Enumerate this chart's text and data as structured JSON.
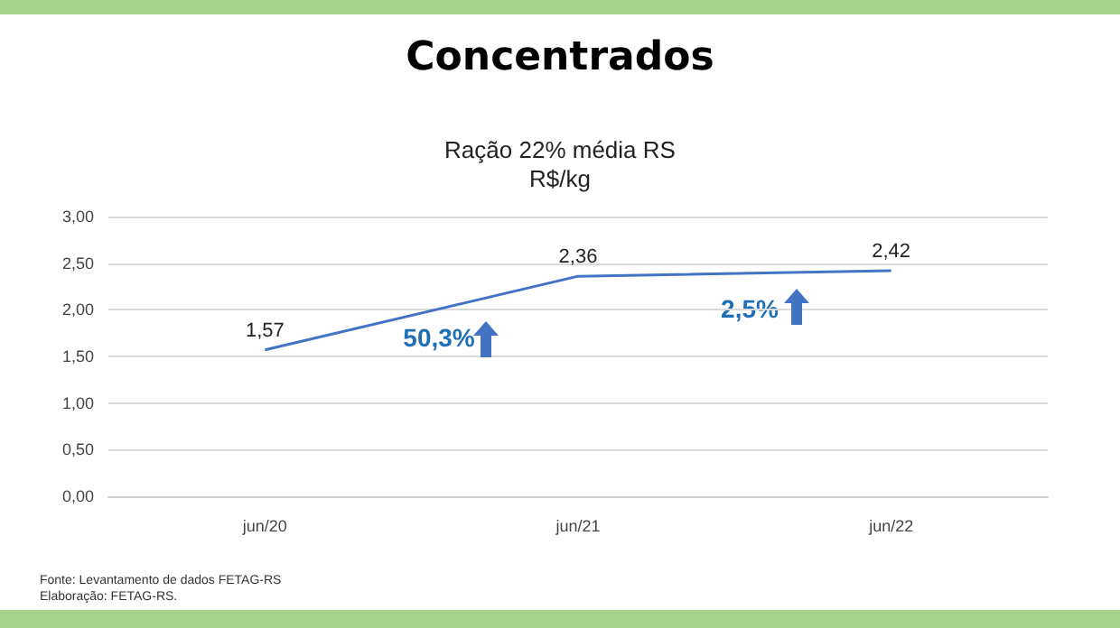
{
  "chart_data": {
    "type": "line",
    "title": "Concentrados",
    "subtitle": "Ração 22% média RS",
    "ylabel": "R$/kg",
    "categories": [
      "jun/20",
      "jun/21",
      "jun/22"
    ],
    "series": [
      {
        "color": "#4472c4",
        "values": [
          1.57,
          2.36,
          2.42
        ],
        "value_labels": [
          "1,57",
          "2,36",
          "2,42"
        ]
      }
    ],
    "ylim": [
      0,
      3
    ],
    "yticks": [
      {
        "value": 0,
        "label": "0,00"
      },
      {
        "value": 0.5,
        "label": "0,50"
      },
      {
        "value": 1,
        "label": "1,00"
      },
      {
        "value": 1.5,
        "label": "1,50"
      },
      {
        "value": 2,
        "label": "2,00"
      },
      {
        "value": 2.5,
        "label": "2,50"
      },
      {
        "value": 3,
        "label": "3,00"
      }
    ],
    "grid": "y",
    "marker": "none",
    "line_style": "solid",
    "annotations": [
      "50,3%",
      "2,5%",
      "Fonte: Levantamento de dados FETAG-RS",
      "Elaboração: FETAG-RS."
    ]
  }
}
